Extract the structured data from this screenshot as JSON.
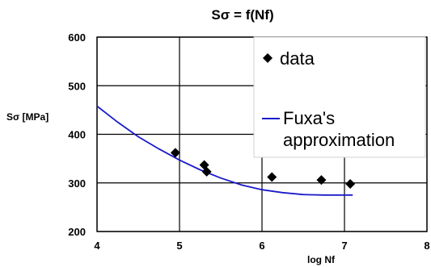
{
  "chart_data": {
    "type": "scatter",
    "title": "Sσ = f(Nf)",
    "xlabel": "log Nf",
    "ylabel": "Sσ [MPa]",
    "xlim": [
      4,
      8
    ],
    "ylim": [
      200,
      600
    ],
    "xticks": [
      "4",
      "5",
      "6",
      "7",
      "8"
    ],
    "yticks": [
      "200",
      "300",
      "400",
      "500",
      "600"
    ],
    "grid": true,
    "legend_position": "top-right",
    "series": [
      {
        "name": "data",
        "kind": "scatter",
        "marker": "diamond",
        "color": "#000000",
        "x": [
          4.95,
          5.3,
          5.33,
          6.12,
          6.72,
          7.07
        ],
        "y": [
          362,
          337,
          323,
          312,
          306,
          298
        ]
      },
      {
        "name": "Fuxa's approximation",
        "name_lines": [
          "Fuxa's",
          "approximation"
        ],
        "kind": "line",
        "color": "#1a1acc",
        "x": [
          4.0,
          4.25,
          4.5,
          4.75,
          5.0,
          5.25,
          5.5,
          5.75,
          6.0,
          6.25,
          6.5,
          6.75,
          7.0,
          7.1
        ],
        "y": [
          458,
          425,
          395,
          370,
          347,
          327,
          310,
          296,
          286,
          280,
          276,
          275,
          275,
          275
        ]
      }
    ]
  }
}
